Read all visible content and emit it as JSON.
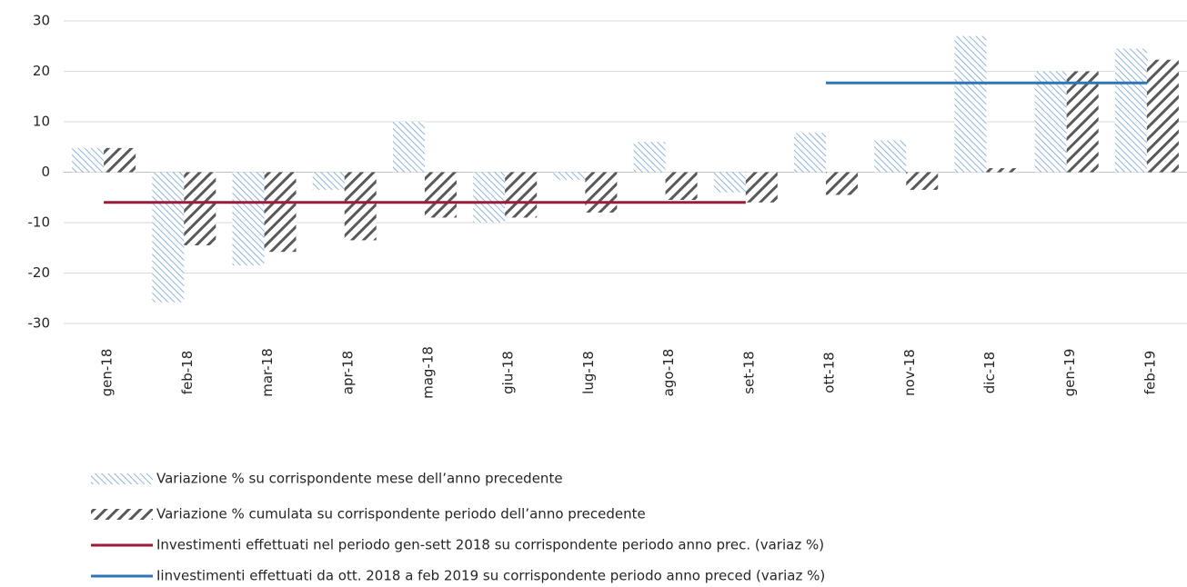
{
  "chart_data": {
    "type": "bar",
    "categories": [
      "gen-18",
      "feb-18",
      "mar-18",
      "apr-18",
      "mag-18",
      "giu-18",
      "lug-18",
      "ago-18",
      "set-18",
      "ott-18",
      "nov-18",
      "dic-18",
      "gen-19",
      "feb-19"
    ],
    "series": [
      {
        "name": "Variazione % su corrispondente mese dell’anno precedente",
        "type": "bar",
        "color": "#8fb4de",
        "values": [
          4.8,
          -25.8,
          -18.5,
          -3.5,
          10,
          -10,
          -1.5,
          6,
          -4,
          7.8,
          6.3,
          27,
          20,
          24.5
        ]
      },
      {
        "name": "Variazione % cumulata su corrispondente periodo dell’anno precedente",
        "type": "bar",
        "color": "#595959",
        "values": [
          4.8,
          -14.5,
          -15.8,
          -13.5,
          -9,
          -9,
          -8,
          -5.5,
          -6,
          -4.5,
          -3.5,
          0.8,
          20,
          22.3
        ]
      },
      {
        "name": "Investimenti effettuati nel periodo gen-sett 2018 su corrispondente periodo anno prec. (variaz %)",
        "type": "line",
        "color": "#9b1b3a",
        "values": [
          -6,
          -6,
          -6,
          -6,
          -6,
          -6,
          -6,
          -6,
          -6,
          null,
          null,
          null,
          null,
          null
        ]
      },
      {
        "name": "Iinvestimenti effettuati da ott. 2018 a feb 2019 su corrispondente periodo anno preced (variaz %)",
        "type": "line",
        "color": "#2e75b6",
        "values": [
          null,
          null,
          null,
          null,
          null,
          null,
          null,
          null,
          null,
          17.7,
          17.7,
          17.7,
          17.7,
          17.7
        ]
      }
    ],
    "ylim": [
      -30,
      30
    ],
    "yticks": [
      -30,
      -20,
      -10,
      0,
      10,
      20,
      30
    ],
    "grid": true
  }
}
